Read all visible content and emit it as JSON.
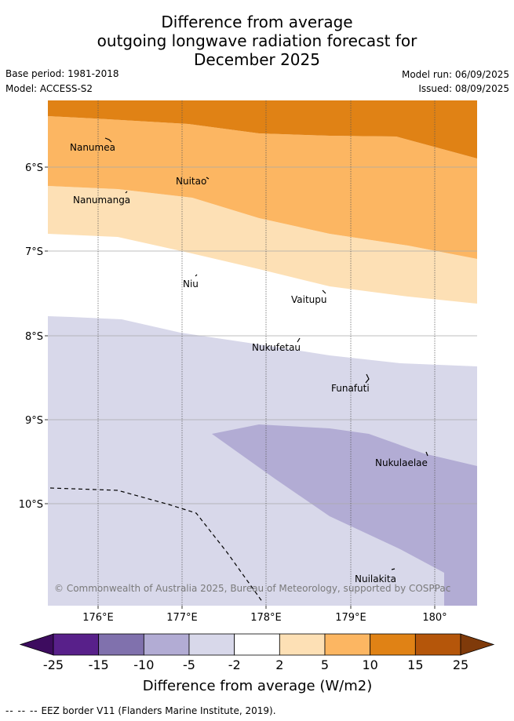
{
  "title_lines": [
    "Difference from average",
    "outgoing longwave radiation forecast for",
    "December 2025"
  ],
  "meta": {
    "base_period": "Base period: 1981-2018",
    "model": "Model: ACCESS-S2",
    "model_run": "Model run: 06/09/2025",
    "issued": "Issued: 08/09/2025"
  },
  "map": {
    "lon_labels": [
      "176°E",
      "177°E",
      "178°E",
      "179°E",
      "180°"
    ],
    "lat_labels": [
      "6°S",
      "7°S",
      "8°S",
      "9°S",
      "10°S"
    ],
    "places": [
      {
        "name": "Nanumea"
      },
      {
        "name": "Nuitao"
      },
      {
        "name": "Nanumanga"
      },
      {
        "name": "Niu"
      },
      {
        "name": "Vaitupu"
      },
      {
        "name": "Nukufetau"
      },
      {
        "name": "Funafuti"
      },
      {
        "name": "Nukulaelae"
      },
      {
        "name": "Nuilakita"
      }
    ],
    "copyright": "© Commonwealth of Australia 2025, Bureau of Meteorology, supported by COSPPac"
  },
  "colorbar": {
    "ticks": [
      "-25",
      "-15",
      "-10",
      "-5",
      "-2",
      "2",
      "5",
      "10",
      "15",
      "25"
    ],
    "colors": [
      "#3d0c5f",
      "#58208a",
      "#8071ad",
      "#b2acd4",
      "#d8d8ea",
      "#ffffff",
      "#fde0b5",
      "#fcb662",
      "#e08215",
      "#b5560a",
      "#7f3a0a"
    ],
    "label": "Difference from average (W/m2)"
  },
  "footer": {
    "dashes": "-- -- --",
    "text": "EEZ border V11 (Flanders Marine Institute, 2019)."
  }
}
